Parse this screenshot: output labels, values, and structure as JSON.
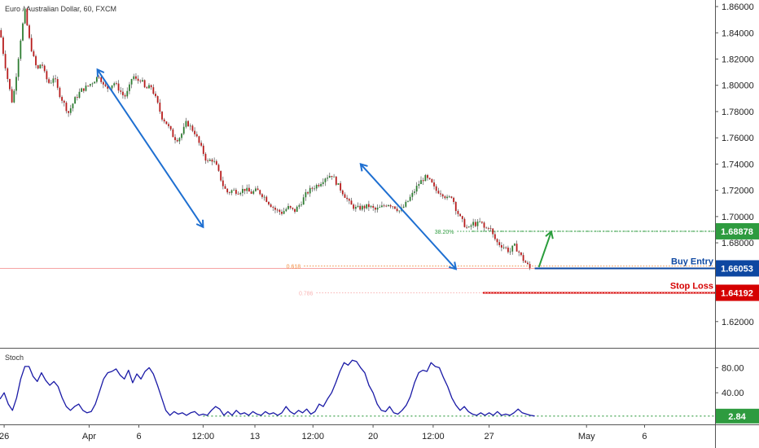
{
  "chart_data": {
    "type": "candlestick",
    "title": "Euro / Australian Dollar, 60, FXCM",
    "price_axis": {
      "ylim": [
        1.6,
        1.865
      ],
      "ticks": [
        "1.86000",
        "1.84000",
        "1.82000",
        "1.80000",
        "1.78000",
        "1.76000",
        "1.74000",
        "1.72000",
        "1.70000",
        "1.68000",
        "1.62000"
      ]
    },
    "x_axis": {
      "labels": [
        {
          "t": 2,
          "text": "26"
        },
        {
          "t": 43,
          "text": "Apr"
        },
        {
          "t": 67,
          "text": "6"
        },
        {
          "t": 98,
          "text": "12:00"
        },
        {
          "t": 123,
          "text": "13"
        },
        {
          "t": 151,
          "text": "12:00"
        },
        {
          "t": 180,
          "text": "20"
        },
        {
          "t": 209,
          "text": "12:00"
        },
        {
          "t": 236,
          "text": "27"
        },
        {
          "t": 283,
          "text": "May"
        },
        {
          "t": 311,
          "text": "6"
        }
      ],
      "tmax": 345
    },
    "price_path": [
      [
        0,
        1.842
      ],
      [
        2,
        1.82
      ],
      [
        4,
        1.802
      ],
      [
        6,
        1.786
      ],
      [
        8,
        1.81
      ],
      [
        10,
        1.836
      ],
      [
        12,
        1.857
      ],
      [
        14,
        1.836
      ],
      [
        16,
        1.822
      ],
      [
        18,
        1.811
      ],
      [
        20,
        1.818
      ],
      [
        22,
        1.806
      ],
      [
        24,
        1.801
      ],
      [
        26,
        1.807
      ],
      [
        28,
        1.796
      ],
      [
        30,
        1.789
      ],
      [
        33,
        1.779
      ],
      [
        36,
        1.789
      ],
      [
        39,
        1.796
      ],
      [
        42,
        1.799
      ],
      [
        45,
        1.803
      ],
      [
        48,
        1.808
      ],
      [
        50,
        1.799
      ],
      [
        52,
        1.798
      ],
      [
        55,
        1.802
      ],
      [
        57,
        1.798
      ],
      [
        60,
        1.791
      ],
      [
        62,
        1.796
      ],
      [
        64,
        1.808
      ],
      [
        66,
        1.803
      ],
      [
        68,
        1.805
      ],
      [
        70,
        1.797
      ],
      [
        73,
        1.799
      ],
      [
        76,
        1.786
      ],
      [
        78,
        1.776
      ],
      [
        80,
        1.772
      ],
      [
        82,
        1.766
      ],
      [
        84,
        1.76
      ],
      [
        86,
        1.759
      ],
      [
        88,
        1.764
      ],
      [
        90,
        1.772
      ],
      [
        92,
        1.768
      ],
      [
        94,
        1.764
      ],
      [
        96,
        1.756
      ],
      [
        98,
        1.749
      ],
      [
        100,
        1.741
      ],
      [
        102,
        1.744
      ],
      [
        104,
        1.74
      ],
      [
        106,
        1.731
      ],
      [
        108,
        1.722
      ],
      [
        110,
        1.718
      ],
      [
        112,
        1.72
      ],
      [
        115,
        1.719
      ],
      [
        118,
        1.721
      ],
      [
        121,
        1.718
      ],
      [
        124,
        1.72
      ],
      [
        127,
        1.716
      ],
      [
        130,
        1.71
      ],
      [
        133,
        1.705
      ],
      [
        136,
        1.703
      ],
      [
        139,
        1.707
      ],
      [
        142,
        1.704
      ],
      [
        145,
        1.71
      ],
      [
        148,
        1.718
      ],
      [
        151,
        1.722
      ],
      [
        154,
        1.725
      ],
      [
        157,
        1.73
      ],
      [
        160,
        1.732
      ],
      [
        163,
        1.724
      ],
      [
        166,
        1.717
      ],
      [
        169,
        1.709
      ],
      [
        172,
        1.706
      ],
      [
        175,
        1.707
      ],
      [
        178,
        1.708
      ],
      [
        181,
        1.705
      ],
      [
        184,
        1.707
      ],
      [
        187,
        1.71
      ],
      [
        190,
        1.708
      ],
      [
        193,
        1.704
      ],
      [
        196,
        1.71
      ],
      [
        199,
        1.717
      ],
      [
        202,
        1.725
      ],
      [
        205,
        1.73
      ],
      [
        208,
        1.726
      ],
      [
        210,
        1.72
      ],
      [
        212,
        1.719
      ],
      [
        214,
        1.717
      ],
      [
        216,
        1.713
      ],
      [
        218,
        1.716
      ],
      [
        220,
        1.706
      ],
      [
        222,
        1.699
      ],
      [
        224,
        1.694
      ],
      [
        226,
        1.69
      ],
      [
        228,
        1.695
      ],
      [
        230,
        1.694
      ],
      [
        232,
        1.696
      ],
      [
        234,
        1.69
      ],
      [
        236,
        1.693
      ],
      [
        238,
        1.685
      ],
      [
        240,
        1.68
      ],
      [
        242,
        1.678
      ],
      [
        244,
        1.676
      ],
      [
        246,
        1.673
      ],
      [
        248,
        1.678
      ],
      [
        250,
        1.674
      ],
      [
        252,
        1.668
      ],
      [
        254,
        1.664
      ],
      [
        256,
        1.66
      ]
    ],
    "arrows": [
      {
        "from": [
          47,
          1.812
        ],
        "to": [
          98,
          1.692
        ],
        "color": "#1e6fd1"
      },
      {
        "from": [
          174,
          1.74
        ],
        "to": [
          220,
          1.66
        ],
        "color": "#1e6fd1"
      },
      {
        "from": [
          260,
          1.6615
        ],
        "to": [
          266,
          1.6885
        ],
        "color": "#2a9d3c"
      }
    ],
    "levels": [
      {
        "name": "current",
        "value": 1.66053,
        "tag": "1.66053",
        "color": "#f6a3a3",
        "style": "solid",
        "from": 0
      },
      {
        "name": "buy",
        "value": 1.66053,
        "tag": "1.66053",
        "label": "Buy Entry",
        "color": "#0d47a1",
        "style": "solid",
        "from": 258
      },
      {
        "name": "target",
        "value": 1.68878,
        "tag": "1.68878",
        "color": "#2e9b3f",
        "style": "dotted",
        "from": 228
      },
      {
        "name": "stop",
        "value": 1.64192,
        "tag": "1.64192",
        "label": "Stop Loss",
        "color": "#d50000",
        "style": "solid",
        "from": 233
      }
    ],
    "fib_levels": [
      {
        "ratio": "38.20%",
        "value": 1.68878,
        "from": 212,
        "color": "#2e9b3f"
      },
      {
        "ratio": "0.618",
        "value": 1.6623,
        "from": 138,
        "color": "#f18a3b"
      },
      {
        "ratio": "0.786",
        "value": 1.64192,
        "from": 144,
        "color": "#f9b4b4"
      }
    ],
    "stoch": {
      "name": "Stoch",
      "ylim": [
        0,
        100
      ],
      "ticks": [
        "80.00",
        "40.00"
      ],
      "current": "2.84",
      "values": [
        [
          0,
          30
        ],
        [
          2,
          40
        ],
        [
          4,
          22
        ],
        [
          6,
          12
        ],
        [
          8,
          32
        ],
        [
          10,
          62
        ],
        [
          12,
          82
        ],
        [
          14,
          82
        ],
        [
          16,
          66
        ],
        [
          18,
          58
        ],
        [
          20,
          72
        ],
        [
          22,
          60
        ],
        [
          24,
          52
        ],
        [
          26,
          58
        ],
        [
          28,
          50
        ],
        [
          30,
          32
        ],
        [
          32,
          18
        ],
        [
          34,
          12
        ],
        [
          36,
          18
        ],
        [
          38,
          22
        ],
        [
          40,
          12
        ],
        [
          42,
          8
        ],
        [
          44,
          10
        ],
        [
          46,
          22
        ],
        [
          48,
          42
        ],
        [
          50,
          62
        ],
        [
          52,
          72
        ],
        [
          54,
          74
        ],
        [
          56,
          78
        ],
        [
          58,
          68
        ],
        [
          60,
          62
        ],
        [
          62,
          76
        ],
        [
          64,
          56
        ],
        [
          66,
          70
        ],
        [
          68,
          62
        ],
        [
          70,
          74
        ],
        [
          72,
          80
        ],
        [
          74,
          70
        ],
        [
          76,
          52
        ],
        [
          78,
          32
        ],
        [
          80,
          12
        ],
        [
          82,
          4
        ],
        [
          84,
          10
        ],
        [
          86,
          6
        ],
        [
          88,
          8
        ],
        [
          90,
          4
        ],
        [
          92,
          8
        ],
        [
          94,
          10
        ],
        [
          96,
          4
        ],
        [
          98,
          6
        ],
        [
          100,
          4
        ],
        [
          102,
          12
        ],
        [
          104,
          18
        ],
        [
          106,
          14
        ],
        [
          108,
          4
        ],
        [
          110,
          10
        ],
        [
          112,
          4
        ],
        [
          114,
          12
        ],
        [
          116,
          6
        ],
        [
          118,
          8
        ],
        [
          120,
          4
        ],
        [
          122,
          10
        ],
        [
          124,
          6
        ],
        [
          126,
          4
        ],
        [
          128,
          10
        ],
        [
          130,
          6
        ],
        [
          132,
          8
        ],
        [
          134,
          4
        ],
        [
          136,
          8
        ],
        [
          138,
          18
        ],
        [
          140,
          10
        ],
        [
          142,
          6
        ],
        [
          144,
          12
        ],
        [
          146,
          8
        ],
        [
          148,
          14
        ],
        [
          150,
          6
        ],
        [
          152,
          10
        ],
        [
          154,
          22
        ],
        [
          156,
          18
        ],
        [
          158,
          30
        ],
        [
          160,
          40
        ],
        [
          162,
          56
        ],
        [
          164,
          74
        ],
        [
          166,
          88
        ],
        [
          168,
          84
        ],
        [
          170,
          92
        ],
        [
          172,
          90
        ],
        [
          174,
          80
        ],
        [
          176,
          72
        ],
        [
          178,
          52
        ],
        [
          180,
          40
        ],
        [
          182,
          22
        ],
        [
          184,
          12
        ],
        [
          186,
          10
        ],
        [
          188,
          18
        ],
        [
          190,
          8
        ],
        [
          192,
          6
        ],
        [
          194,
          12
        ],
        [
          196,
          20
        ],
        [
          198,
          34
        ],
        [
          200,
          56
        ],
        [
          202,
          72
        ],
        [
          204,
          76
        ],
        [
          206,
          74
        ],
        [
          208,
          88
        ],
        [
          210,
          82
        ],
        [
          212,
          80
        ],
        [
          214,
          64
        ],
        [
          216,
          50
        ],
        [
          218,
          32
        ],
        [
          220,
          20
        ],
        [
          222,
          12
        ],
        [
          224,
          18
        ],
        [
          226,
          10
        ],
        [
          228,
          6
        ],
        [
          230,
          4
        ],
        [
          232,
          8
        ],
        [
          234,
          4
        ],
        [
          236,
          8
        ],
        [
          238,
          4
        ],
        [
          240,
          10
        ],
        [
          242,
          4
        ],
        [
          244,
          6
        ],
        [
          246,
          4
        ],
        [
          248,
          8
        ],
        [
          250,
          14
        ],
        [
          252,
          8
        ],
        [
          254,
          6
        ],
        [
          256,
          4
        ],
        [
          258,
          3
        ]
      ]
    }
  }
}
